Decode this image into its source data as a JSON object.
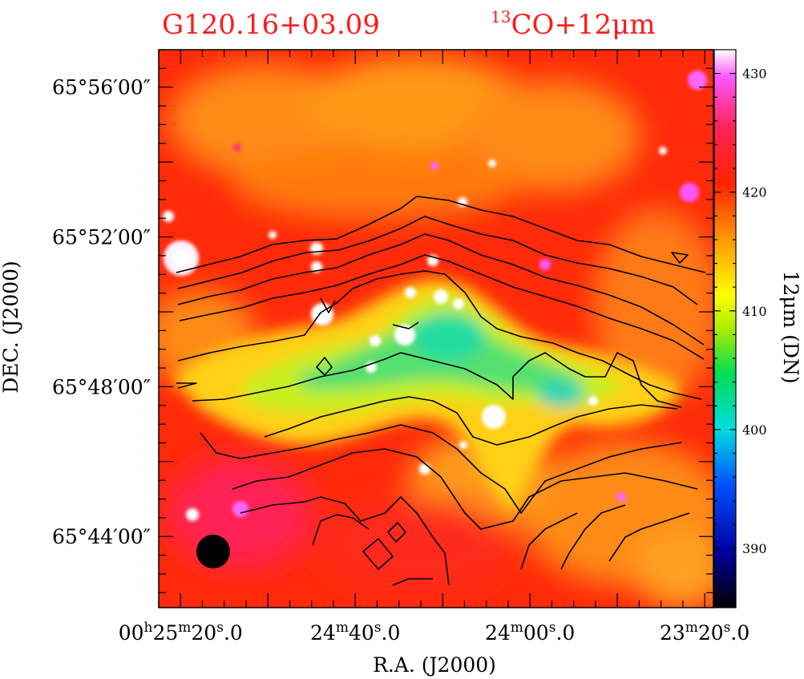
{
  "chart_data": {
    "type": "heatmap",
    "title_left": "G120.16+03.09",
    "title_right_sup": "13",
    "title_right": "CO+12μm",
    "xlabel": "R.A.  (J2000)",
    "ylabel": "DEC.  (J2000)",
    "x_ticks": [
      {
        "h": "00",
        "hu": "h",
        "m": "25",
        "mu": "m",
        "s": "20",
        "su": "s",
        "f": ".0"
      },
      {
        "h": "",
        "hu": "",
        "m": "24",
        "mu": "m",
        "s": "40",
        "su": "s",
        "f": ".0"
      },
      {
        "h": "",
        "hu": "",
        "m": "24",
        "mu": "m",
        "s": "00",
        "su": "s",
        "f": ".0"
      },
      {
        "h": "",
        "hu": "",
        "m": "23",
        "mu": "m",
        "s": "20",
        "su": "s",
        "f": ".0"
      }
    ],
    "y_ticks": [
      "65°56′00″",
      "65°52′00″",
      "65°48′00″",
      "65°44′00″"
    ],
    "y_tick_values_arcmin": [
      56,
      52,
      48,
      44
    ],
    "x_tick_values_sec": [
      1520,
      1480,
      1440,
      1400
    ],
    "xlim_sec": [
      1525,
      1398
    ],
    "ylim_arcmin": [
      42.1,
      57.0
    ],
    "colorbar": {
      "label": "12μm (DN)",
      "ticks": [
        390,
        400,
        410,
        420,
        430
      ],
      "range": [
        385,
        432
      ]
    },
    "contour_color": "#000000",
    "beam_marker": "filled-black-circle"
  }
}
